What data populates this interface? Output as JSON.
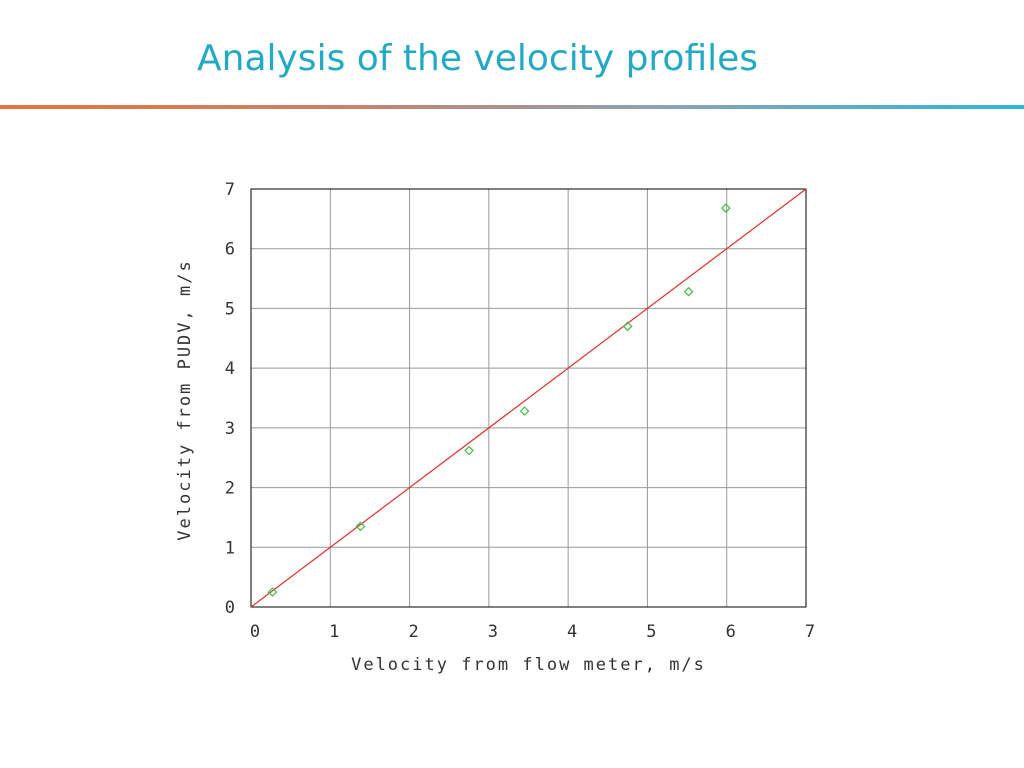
{
  "slide": {
    "title": "Analysis of the velocity profiles"
  },
  "colors": {
    "title": "#22aac4",
    "fit_line": "#e0302a",
    "points": "#44bb44",
    "grid": "#999999"
  },
  "chart_data": {
    "type": "scatter",
    "title": "",
    "xlabel": "Velocity from flow meter, m/s",
    "ylabel": "Velocity from PUDV, m/s",
    "xlim": [
      0,
      7
    ],
    "ylim": [
      0,
      7
    ],
    "xticks": [
      "0",
      "1",
      "2",
      "3",
      "4",
      "5",
      "6",
      "7"
    ],
    "yticks": [
      "0",
      "1",
      "2",
      "3",
      "4",
      "5",
      "6",
      "7"
    ],
    "grid": true,
    "series": [
      {
        "marker": "diamond",
        "x": [
          0.27,
          1.38,
          2.75,
          3.45,
          4.75,
          5.52,
          5.99
        ],
        "y": [
          0.25,
          1.35,
          2.62,
          3.28,
          4.7,
          5.28,
          6.68
        ]
      }
    ],
    "reference_line": {
      "x": [
        0,
        7
      ],
      "y": [
        0,
        7
      ]
    }
  }
}
